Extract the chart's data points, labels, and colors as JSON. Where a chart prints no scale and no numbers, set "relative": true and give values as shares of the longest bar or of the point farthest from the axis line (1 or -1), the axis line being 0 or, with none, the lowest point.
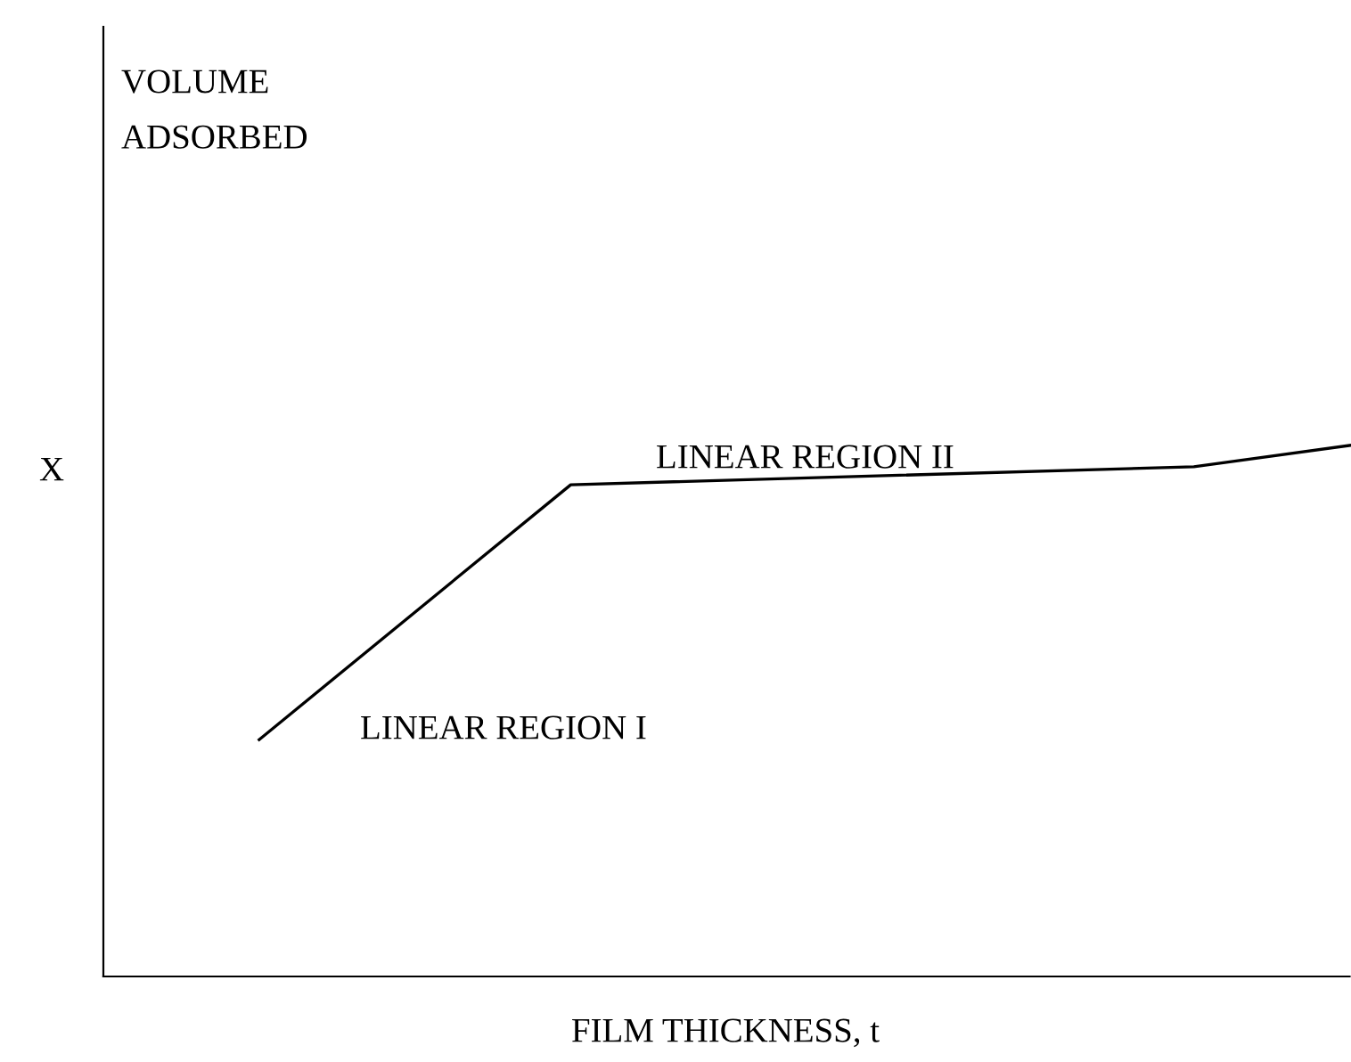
{
  "chart_data": {
    "type": "line",
    "relative": true,
    "xlabel": "FILM THICKNESS, t",
    "annotations": [
      "VOLUME\nADSORBED",
      "X",
      "LINEAR REGION II",
      "LINEAR REGION I"
    ],
    "categories": [
      null,
      null,
      null,
      null,
      null,
      null,
      null,
      null,
      null
    ],
    "series": [
      {
        "color": "#000000",
        "values": [
          null,
          0.446,
          null,
          0.926,
          null,
          null,
          null,
          0.96,
          1.0
        ]
      }
    ],
    "marker": "none",
    "line_style": "solid"
  }
}
